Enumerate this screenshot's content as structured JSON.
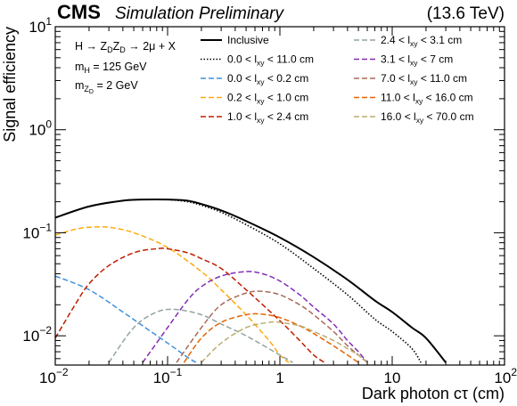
{
  "header": {
    "cms": "CMS",
    "subtitle": "Simulation Preliminary",
    "energy": "(13.6 TeV)"
  },
  "info": {
    "process": "H → Z_D Z_D → 2μ + X",
    "mH": "m_H = 125 GeV",
    "mZD": "m_ZD = 2 GeV"
  },
  "chart_data": {
    "type": "line",
    "xlabel": "Dark photon cτ (cm)",
    "ylabel": "Signal efficiency",
    "xscale": "log",
    "yscale": "log",
    "xlim": [
      0.01,
      100
    ],
    "ylim": [
      0.0052,
      10
    ],
    "xticks": [
      "10^-2",
      "10^-1",
      "1",
      "10",
      "10^2"
    ],
    "yticks": [
      "10^-2",
      "10^-1",
      "10^0",
      "10^1"
    ],
    "grid": false,
    "legend_placement": "top",
    "series": [
      {
        "name": "Inclusive",
        "color": "#000000",
        "style": "solid",
        "width": 2.0,
        "points": [
          [
            0.01,
            0.14
          ],
          [
            0.02,
            0.18
          ],
          [
            0.04,
            0.205
          ],
          [
            0.06,
            0.21
          ],
          [
            0.1,
            0.21
          ],
          [
            0.15,
            0.205
          ],
          [
            0.2,
            0.19
          ],
          [
            0.3,
            0.165
          ],
          [
            0.5,
            0.13
          ],
          [
            1,
            0.09
          ],
          [
            2,
            0.058
          ],
          [
            4,
            0.035
          ],
          [
            7,
            0.022
          ],
          [
            10,
            0.017
          ],
          [
            15,
            0.012
          ],
          [
            20,
            0.0095
          ],
          [
            30,
            0.0055
          ]
        ]
      },
      {
        "name": "0.0 < l_xy < 11.0 cm",
        "color": "#000000",
        "style": "dotted",
        "width": 1.6,
        "points": [
          [
            0.01,
            0.14
          ],
          [
            0.02,
            0.18
          ],
          [
            0.04,
            0.205
          ],
          [
            0.06,
            0.21
          ],
          [
            0.1,
            0.21
          ],
          [
            0.15,
            0.2
          ],
          [
            0.2,
            0.185
          ],
          [
            0.3,
            0.158
          ],
          [
            0.5,
            0.12
          ],
          [
            1,
            0.078
          ],
          [
            2,
            0.045
          ],
          [
            4,
            0.025
          ],
          [
            7,
            0.0145
          ],
          [
            10,
            0.011
          ],
          [
            15,
            0.0075
          ],
          [
            18,
            0.0055
          ]
        ]
      },
      {
        "name": "0.0 < l_xy < 0.2 cm",
        "color": "#3f90da",
        "style": "dashed",
        "width": 1.5,
        "points": [
          [
            0.01,
            0.038
          ],
          [
            0.02,
            0.028
          ],
          [
            0.04,
            0.017
          ],
          [
            0.06,
            0.0125
          ],
          [
            0.1,
            0.0085
          ],
          [
            0.15,
            0.0062
          ],
          [
            0.18,
            0.0055
          ]
        ]
      },
      {
        "name": "0.2 < l_xy < 1.0 cm",
        "color": "#ffa90e",
        "style": "dashed",
        "width": 1.5,
        "points": [
          [
            0.01,
            0.095
          ],
          [
            0.015,
            0.108
          ],
          [
            0.02,
            0.113
          ],
          [
            0.03,
            0.113
          ],
          [
            0.05,
            0.1
          ],
          [
            0.1,
            0.072
          ],
          [
            0.2,
            0.042
          ],
          [
            0.3,
            0.028
          ],
          [
            0.5,
            0.016
          ],
          [
            0.8,
            0.009
          ],
          [
            1,
            0.0065
          ],
          [
            1.2,
            0.0055
          ]
        ]
      },
      {
        "name": "1.0 < l_xy < 2.4 cm",
        "color": "#bd1f01",
        "style": "dashed",
        "width": 1.5,
        "points": [
          [
            0.01,
            0.0095
          ],
          [
            0.015,
            0.02
          ],
          [
            0.02,
            0.032
          ],
          [
            0.03,
            0.048
          ],
          [
            0.05,
            0.064
          ],
          [
            0.08,
            0.07
          ],
          [
            0.1,
            0.07
          ],
          [
            0.15,
            0.064
          ],
          [
            0.2,
            0.056
          ],
          [
            0.3,
            0.045
          ],
          [
            0.5,
            0.028
          ],
          [
            1,
            0.014
          ],
          [
            1.5,
            0.009
          ],
          [
            2,
            0.0065
          ],
          [
            2.5,
            0.0055
          ]
        ]
      },
      {
        "name": "2.4 < l_xy < 3.1 cm",
        "color": "#94a4a2",
        "style": "dashed",
        "width": 1.5,
        "points": [
          [
            0.03,
            0.0055
          ],
          [
            0.05,
            0.012
          ],
          [
            0.08,
            0.017
          ],
          [
            0.12,
            0.018
          ],
          [
            0.2,
            0.016
          ],
          [
            0.3,
            0.013
          ],
          [
            0.5,
            0.01
          ],
          [
            1,
            0.0065
          ],
          [
            1.3,
            0.0055
          ]
        ]
      },
      {
        "name": "3.1 < l_xy < 7 cm",
        "color": "#832db6",
        "style": "dashed",
        "width": 1.5,
        "points": [
          [
            0.06,
            0.0055
          ],
          [
            0.1,
            0.012
          ],
          [
            0.15,
            0.022
          ],
          [
            0.2,
            0.03
          ],
          [
            0.3,
            0.038
          ],
          [
            0.5,
            0.042
          ],
          [
            0.7,
            0.04
          ],
          [
            1,
            0.034
          ],
          [
            1.5,
            0.025
          ],
          [
            2,
            0.019
          ],
          [
            3,
            0.013
          ],
          [
            4,
            0.009
          ],
          [
            5,
            0.007
          ],
          [
            6,
            0.0055
          ]
        ]
      },
      {
        "name": "7.0 < l_xy < 11.0 cm",
        "color": "#a96b59",
        "style": "dashed",
        "width": 1.5,
        "points": [
          [
            0.12,
            0.0055
          ],
          [
            0.2,
            0.012
          ],
          [
            0.3,
            0.02
          ],
          [
            0.5,
            0.026
          ],
          [
            0.7,
            0.027
          ],
          [
            1,
            0.025
          ],
          [
            1.5,
            0.02
          ],
          [
            2,
            0.016
          ],
          [
            3,
            0.011
          ],
          [
            4,
            0.008
          ],
          [
            5,
            0.0065
          ],
          [
            6,
            0.0055
          ]
        ]
      },
      {
        "name": "11.0 < l_xy < 16.0 cm",
        "color": "#e76300",
        "style": "dashed",
        "width": 1.5,
        "points": [
          [
            0.14,
            0.0055
          ],
          [
            0.2,
            0.0095
          ],
          [
            0.3,
            0.0135
          ],
          [
            0.5,
            0.016
          ],
          [
            0.7,
            0.0162
          ],
          [
            1,
            0.015
          ],
          [
            1.5,
            0.0125
          ],
          [
            2,
            0.0105
          ],
          [
            3,
            0.008
          ],
          [
            4,
            0.0065
          ],
          [
            5,
            0.0055
          ]
        ]
      },
      {
        "name": "16.0 < l_xy < 70.0 cm",
        "color": "#b9ac70",
        "style": "dashed",
        "width": 1.5,
        "points": [
          [
            0.2,
            0.0055
          ],
          [
            0.3,
            0.0085
          ],
          [
            0.5,
            0.012
          ],
          [
            0.8,
            0.0135
          ],
          [
            1,
            0.0135
          ],
          [
            1.5,
            0.0125
          ],
          [
            2,
            0.011
          ],
          [
            3,
            0.009
          ],
          [
            4,
            0.0075
          ],
          [
            5,
            0.0065
          ],
          [
            6,
            0.0055
          ]
        ]
      }
    ]
  }
}
